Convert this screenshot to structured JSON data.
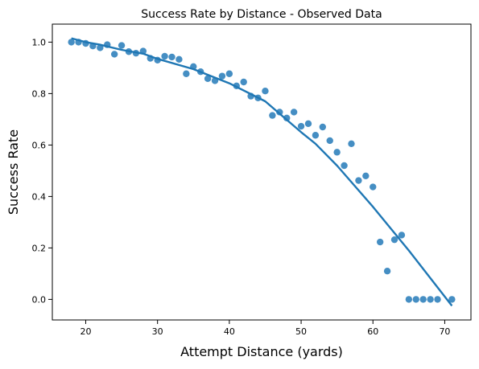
{
  "chart_data": {
    "type": "scatter",
    "title": "Success Rate by Distance - Observed Data",
    "xlabel": "Attempt Distance (yards)",
    "ylabel": "Success Rate",
    "xlim": [
      15.35,
      73.65
    ],
    "ylim": [
      -0.08,
      1.07
    ],
    "xticks": [
      20,
      30,
      40,
      50,
      60,
      70
    ],
    "yticks": [
      0.0,
      0.2,
      0.4,
      0.6,
      0.8,
      1.0
    ],
    "grid": false,
    "colors": {
      "points": "#3182bd",
      "line": "#1f77b4"
    },
    "series": [
      {
        "type": "scatter",
        "points": [
          [
            18,
            1.0
          ],
          [
            19,
            1.0
          ],
          [
            20,
            0.995
          ],
          [
            21,
            0.985
          ],
          [
            22,
            0.978
          ],
          [
            23,
            0.99
          ],
          [
            24,
            0.953
          ],
          [
            25,
            0.987
          ],
          [
            26,
            0.963
          ],
          [
            27,
            0.957
          ],
          [
            28,
            0.965
          ],
          [
            29,
            0.937
          ],
          [
            30,
            0.93
          ],
          [
            31,
            0.945
          ],
          [
            32,
            0.942
          ],
          [
            33,
            0.933
          ],
          [
            34,
            0.877
          ],
          [
            35,
            0.905
          ],
          [
            36,
            0.885
          ],
          [
            37,
            0.858
          ],
          [
            38,
            0.85
          ],
          [
            39,
            0.868
          ],
          [
            40,
            0.877
          ],
          [
            41,
            0.83
          ],
          [
            42,
            0.845
          ],
          [
            43,
            0.79
          ],
          [
            44,
            0.783
          ],
          [
            45,
            0.81
          ],
          [
            46,
            0.715
          ],
          [
            47,
            0.728
          ],
          [
            48,
            0.705
          ],
          [
            49,
            0.728
          ],
          [
            50,
            0.673
          ],
          [
            51,
            0.683
          ],
          [
            52,
            0.638
          ],
          [
            53,
            0.67
          ],
          [
            54,
            0.617
          ],
          [
            55,
            0.572
          ],
          [
            56,
            0.52
          ],
          [
            57,
            0.605
          ],
          [
            58,
            0.462
          ],
          [
            59,
            0.48
          ],
          [
            60,
            0.437
          ],
          [
            61,
            0.223
          ],
          [
            62,
            0.11
          ],
          [
            63,
            0.232
          ],
          [
            64,
            0.25
          ],
          [
            65,
            0.0
          ],
          [
            66,
            0.0
          ],
          [
            67,
            0.0
          ],
          [
            68,
            0.0
          ],
          [
            69,
            0.0
          ],
          [
            71,
            0.0
          ]
        ]
      },
      {
        "type": "line",
        "points": [
          [
            18,
            1.015
          ],
          [
            20,
            1.0
          ],
          [
            22,
            0.99
          ],
          [
            25,
            0.97
          ],
          [
            28,
            0.955
          ],
          [
            30,
            0.935
          ],
          [
            35,
            0.895
          ],
          [
            40,
            0.84
          ],
          [
            45,
            0.77
          ],
          [
            50,
            0.65
          ],
          [
            52,
            0.605
          ],
          [
            55,
            0.52
          ],
          [
            60,
            0.36
          ],
          [
            65,
            0.19
          ],
          [
            71,
            -0.025
          ]
        ]
      }
    ]
  }
}
